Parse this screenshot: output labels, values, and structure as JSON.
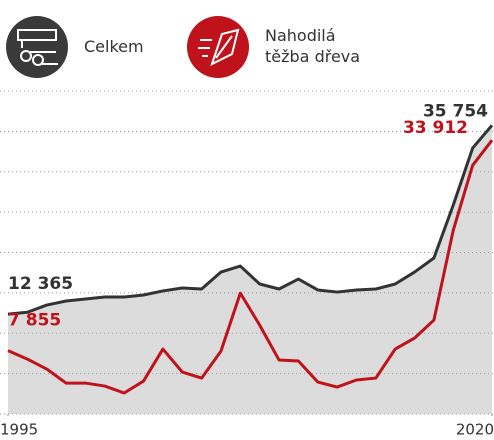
{
  "chart_data": {
    "type": "line",
    "x": [
      1995,
      1996,
      1997,
      1998,
      1999,
      2000,
      2001,
      2002,
      2003,
      2004,
      2005,
      2006,
      2007,
      2008,
      2009,
      2010,
      2011,
      2012,
      2013,
      2014,
      2015,
      2016,
      2017,
      2018,
      2019,
      2020
    ],
    "xlim": [
      1995,
      2020
    ],
    "xticks": [
      1995,
      2020
    ],
    "ylim": [
      0,
      40000
    ],
    "yticks": [
      0,
      5000,
      10000,
      15000,
      20000,
      25000,
      30000,
      35000,
      40000
    ],
    "grid": true,
    "series": [
      {
        "name": "Celkem",
        "color": "#333333",
        "area_color": "#dcdcdc",
        "values": [
          12365,
          12600,
          13490,
          13990,
          14240,
          14490,
          14490,
          14740,
          15240,
          15600,
          15480,
          17580,
          18320,
          16100,
          15480,
          16710,
          15360,
          15100,
          15360,
          15480,
          16100,
          17580,
          19320,
          25880,
          32930,
          35754
        ],
        "value_labels": [
          "12 365",
          null,
          null,
          null,
          null,
          null,
          null,
          null,
          null,
          null,
          null,
          null,
          null,
          null,
          null,
          null,
          null,
          null,
          null,
          null,
          null,
          null,
          null,
          null,
          null,
          "35 754"
        ]
      },
      {
        "name": "Nahodilá těžba dřeva",
        "color": "#c0121b",
        "values": [
          7855,
          6800,
          5570,
          3830,
          3830,
          3460,
          2600,
          4080,
          8040,
          5200,
          4450,
          7790,
          14970,
          11010,
          6680,
          6560,
          3960,
          3340,
          4210,
          4450,
          8040,
          9400,
          11630,
          22760,
          30800,
          33912
        ],
        "value_labels": [
          "7 855",
          null,
          null,
          null,
          null,
          null,
          null,
          null,
          null,
          null,
          null,
          null,
          null,
          null,
          null,
          null,
          null,
          null,
          null,
          null,
          null,
          null,
          null,
          null,
          null,
          "33 912"
        ]
      }
    ]
  }
}
